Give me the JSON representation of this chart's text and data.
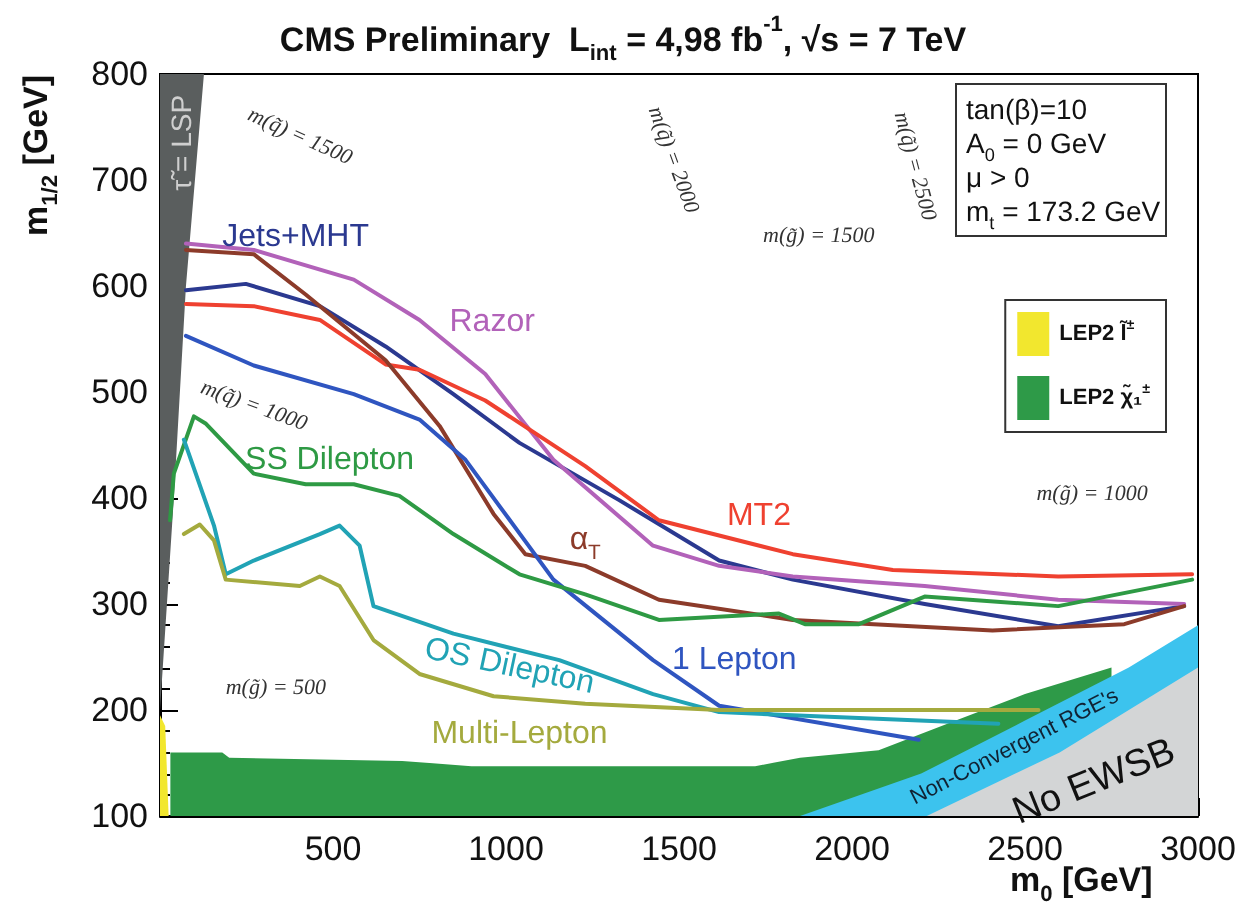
{
  "chart_data": {
    "type": "line",
    "title": "CMS Preliminary  L$_{int}$ = 4,98 fb$^{-1}$, √s = 7 TeV",
    "xlabel": "m$_{0}$ [GeV]",
    "ylabel": "m$_{1/2}$ [GeV]",
    "xlim": [
      0,
      3000
    ],
    "ylim": [
      100,
      800
    ],
    "xticks": [
      500,
      1000,
      1500,
      2000,
      2500,
      3000
    ],
    "yticks": [
      100,
      200,
      300,
      400,
      500,
      600,
      700,
      800
    ],
    "grid": false,
    "legend": "right",
    "line_style": "solid",
    "series": [
      {
        "name": "LEP2 l̃$^{±}$",
        "type": "area",
        "color": "#f2e72e",
        "x": [
          0,
          15,
          25
        ],
        "values": [
          195,
          185,
          100
        ]
      },
      {
        "name": "LEP2 χ̃₁$^{±}$",
        "type": "area",
        "color": "#2e9a48",
        "x": [
          30,
          180,
          200,
          700,
          900,
          1720,
          1850,
          2077,
          2300,
          2500,
          2750
        ],
        "values": [
          160,
          160,
          155,
          152,
          147,
          147,
          155,
          162,
          190,
          215,
          240
        ]
      },
      {
        "name": "Non-Convergent RGE's",
        "type": "area",
        "color": "#3cc3ee",
        "x": [
          1850,
          2200,
          2500,
          2800,
          3000
        ],
        "values": [
          100,
          140,
          190,
          240,
          280
        ]
      },
      {
        "name": "No EWSB",
        "type": "area",
        "color": "#d3d5d6",
        "x": [
          2216,
          2600,
          3000
        ],
        "values": [
          100,
          160,
          240
        ]
      },
      {
        "name": "τ̃ = LSP",
        "type": "area",
        "color": "#5a5e5e",
        "x": [
          0,
          40,
          75,
          127,
          0
        ],
        "values": [
          200,
          400,
          600,
          800,
          800
        ]
      },
      {
        "name": "Jets+MHT",
        "color": "#2b3990",
        "x": [
          75,
          248,
          462,
          652,
          848,
          1039,
          1327,
          1616,
          1829,
          2210,
          2596,
          2960
        ],
        "values": [
          596,
          602,
          581,
          543,
          498,
          452,
          398,
          341,
          323,
          300,
          279,
          298
        ]
      },
      {
        "name": "Razor",
        "color": "#b262b9",
        "x": [
          75,
          271,
          560,
          750,
          940,
          1137,
          1425,
          1616,
          1829,
          2210,
          2596,
          2960
        ],
        "values": [
          640,
          634,
          606,
          568,
          517,
          436,
          355,
          336,
          326,
          317,
          304,
          300
        ]
      },
      {
        "name": "MT2",
        "color": "#ef4130",
        "x": [
          75,
          271,
          462,
          652,
          750,
          940,
          1229,
          1442,
          1829,
          2118,
          2596,
          2983
        ],
        "values": [
          583,
          581,
          568,
          526,
          521,
          492,
          430,
          379,
          347,
          332,
          326,
          328
        ]
      },
      {
        "name": "α$_{T}$",
        "color": "#8c3b2a",
        "x": [
          75,
          271,
          421,
          652,
          808,
          964,
          1056,
          1229,
          1442,
          1829,
          2406,
          2787,
          2960
        ],
        "values": [
          634,
          630,
          592,
          530,
          468,
          385,
          347,
          336,
          304,
          285,
          275,
          281,
          298
        ]
      },
      {
        "name": "1 Lepton",
        "color": "#2f55c0",
        "x": [
          75,
          271,
          560,
          750,
          883,
          1137,
          1425,
          1616,
          2193
        ],
        "values": [
          553,
          525,
          498,
          474,
          436,
          323,
          247,
          204,
          172
        ]
      },
      {
        "name": "SS Dilepton",
        "color": "#2e9a44",
        "x": [
          29,
          40,
          98,
          133,
          271,
          421,
          560,
          692,
          848,
          1039,
          1229,
          1442,
          1789,
          1864,
          2020,
          2210,
          2596,
          2983
        ],
        "values": [
          379,
          423,
          477,
          470,
          423,
          413,
          413,
          402,
          366,
          328,
          309,
          285,
          291,
          281,
          281,
          307,
          298,
          323
        ]
      },
      {
        "name": "OS Dilepton",
        "color": "#21a3b5",
        "x": [
          69,
          156,
          190,
          271,
          462,
          519,
          577,
          617,
          848,
          1154,
          1425,
          1616,
          2423
        ],
        "values": [
          455,
          374,
          328,
          341,
          366,
          374,
          355,
          298,
          272,
          247,
          215,
          198,
          187
        ]
      },
      {
        "name": "Multi-Lepton",
        "color": "#a4aa3e",
        "x": [
          69,
          115,
          156,
          190,
          404,
          462,
          519,
          617,
          750,
          964,
          1229,
          1616,
          2539
        ],
        "values": [
          366,
          375,
          360,
          323,
          317,
          326,
          317,
          266,
          234,
          213,
          206,
          200,
          200
        ]
      }
    ],
    "annotations": [
      "tan(β)=10",
      "A$_{0}$ = 0 GeV",
      "μ > 0",
      "m$_{t}$ = 173.2 GeV",
      "m(q̃) = 1500",
      "m(q̃) = 2000",
      "m(q̃) = 2500",
      "m(g̃) = 1500",
      "m(q̃) = 1000",
      "m(g̃) = 1000",
      "m(g̃) = 500"
    ]
  }
}
